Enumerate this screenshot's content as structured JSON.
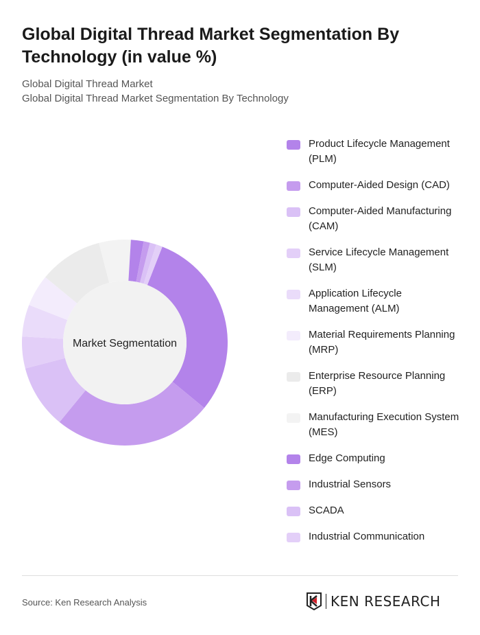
{
  "title": "Global Digital Thread Market Segmentation By Technology (in value %)",
  "breadcrumb": [
    "Global Digital Thread Market",
    "Global Digital Thread Market Segmentation By Technology"
  ],
  "chart_data": {
    "type": "pie",
    "donut": true,
    "center_label": "Market Segmentation",
    "legend_position": "right",
    "categories": [
      "Product Lifecycle Management (PLM)",
      "Computer-Aided Design (CAD)",
      "Computer-Aided Manufacturing (CAM)",
      "Service Lifecycle Management (SLM)",
      "Application Lifecycle Management (ALM)",
      "Material Requirements Planning (MRP)",
      "Enterprise Resource Planning (ERP)",
      "Manufacturing Execution System (MES)",
      "Edge Computing",
      "Industrial Sensors",
      "SCADA",
      "Industrial Communication"
    ],
    "values": [
      30,
      25,
      10,
      5,
      5,
      5,
      10,
      5,
      2,
      1,
      1,
      1
    ],
    "colors": [
      "#b383ea",
      "#c59cee",
      "#dac1f6",
      "#e3cff8",
      "#eadcfa",
      "#f3ecfc",
      "#ebebeb",
      "#f3f3f3",
      "#b383ea",
      "#c59cee",
      "#dac1f6",
      "#e3cff8"
    ]
  },
  "footer": {
    "source": "Source: Ken Research Analysis",
    "logo": "KEN RESEARCH"
  }
}
